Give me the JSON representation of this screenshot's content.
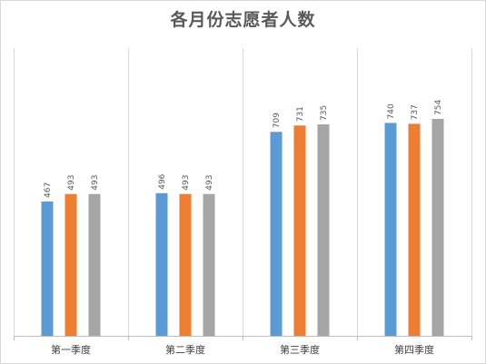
{
  "chart_data": {
    "type": "bar",
    "title": "各月份志愿者人数",
    "categories": [
      "第一季度",
      "第二季度",
      "第三季度",
      "第四季度"
    ],
    "series": [
      {
        "values": [
          467,
          496,
          709,
          740
        ],
        "color": "#5b9bd5"
      },
      {
        "values": [
          493,
          493,
          731,
          737
        ],
        "color": "#ed7d31"
      },
      {
        "values": [
          493,
          493,
          735,
          754
        ],
        "color": "#a5a5a5"
      }
    ],
    "ylim": [
      0,
      1000
    ],
    "grid": true,
    "legend": "none",
    "data_labels": true
  }
}
